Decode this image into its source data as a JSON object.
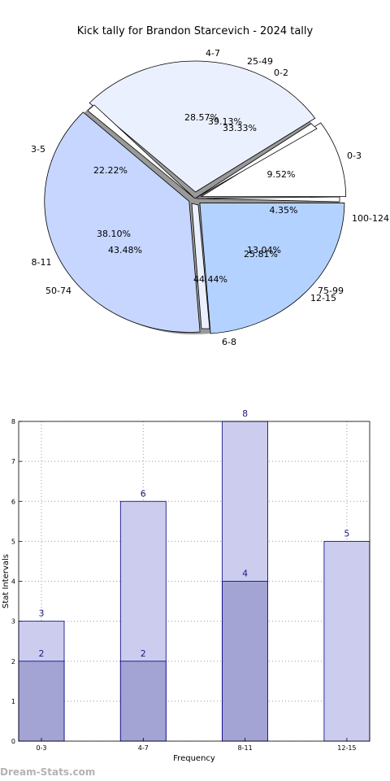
{
  "watermark": "Dream-Stats.com",
  "chart_data": [
    {
      "type": "pie",
      "title": "Kick tally for Brandon Starcevich - 2024 tally",
      "rings": [
        {
          "name": "outer",
          "slices": [
            {
              "label": "0-3",
              "value": 9.52,
              "pct_label": "9.52%",
              "color": "#ffffff"
            },
            {
              "label": "4-7",
              "value": 28.57,
              "pct_label": "28.57%",
              "color": "#ebf0ff"
            },
            {
              "label": "8-11",
              "value": 38.1,
              "pct_label": "38.10%",
              "color": "#c6d6ff"
            },
            {
              "label": "12-15",
              "value": 23.81,
              "pct_label": "",
              "color": "#b4d2ff"
            }
          ]
        },
        {
          "name": "inner",
          "slices": [
            {
              "label": "0-2",
              "value": 33.33,
              "pct_label": "33.33%",
              "color": "#ffffff"
            },
            {
              "label": "3-5",
              "value": 22.22,
              "pct_label": "22.22%",
              "color": "#ebf0ff"
            },
            {
              "label": "6-8",
              "value": 44.44,
              "pct_label": "44.44%",
              "color": "#c6d6ff"
            }
          ]
        },
        {
          "name": "third",
          "slices": [
            {
              "label": "25-49",
              "value": 39.13,
              "pct_label": "39.13%",
              "color": "#ebf0ff"
            },
            {
              "label": "50-74",
              "value": 43.48,
              "pct_label": "43.48%",
              "color": "#c6d6ff"
            },
            {
              "label": "75-99",
              "value": 13.04,
              "pct_label": "13.04%",
              "color": "#b4d2ff"
            },
            {
              "label": "100-124",
              "value": 4.35,
              "pct_label": "4.35%",
              "color": "#ffffff"
            }
          ]
        },
        {
          "name": "fourth",
          "slices": [
            {
              "label": "",
              "value": 25.81,
              "pct_label": "25.81%",
              "color": "#b4d2ff"
            }
          ]
        }
      ]
    },
    {
      "type": "bar",
      "categories": [
        "0-3",
        "4-7",
        "8-11",
        "12-15"
      ],
      "series": [
        {
          "values": [
            3,
            6,
            8,
            5
          ],
          "color": "#ccccee"
        },
        {
          "values": [
            2,
            2,
            4,
            0
          ],
          "color": "#a3a3d4"
        }
      ],
      "bar_labels_back": [
        "3",
        "6",
        "8",
        "5"
      ],
      "bar_labels_front": [
        "2",
        "2",
        "4",
        ""
      ],
      "xlabel": "Frequency",
      "ylabel": "Stat Intervals",
      "ylim": [
        0,
        8
      ],
      "yticks": [
        "0",
        "1",
        "2",
        "3",
        "4",
        "5",
        "6",
        "7",
        "8"
      ],
      "grid": true,
      "edge_color": "#000080"
    }
  ]
}
